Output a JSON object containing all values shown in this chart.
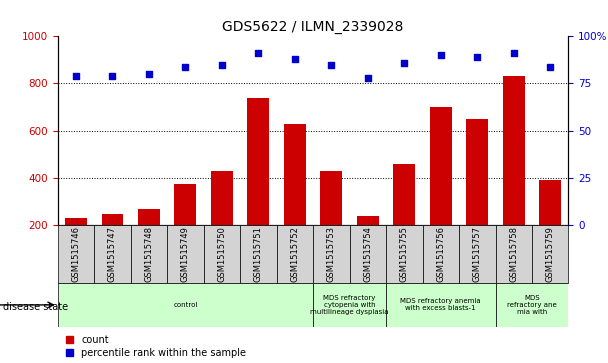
{
  "title": "GDS5622 / ILMN_2339028",
  "samples": [
    "GSM1515746",
    "GSM1515747",
    "GSM1515748",
    "GSM1515749",
    "GSM1515750",
    "GSM1515751",
    "GSM1515752",
    "GSM1515753",
    "GSM1515754",
    "GSM1515755",
    "GSM1515756",
    "GSM1515757",
    "GSM1515758",
    "GSM1515759"
  ],
  "counts": [
    230,
    245,
    270,
    375,
    430,
    740,
    630,
    430,
    240,
    460,
    700,
    650,
    830,
    390
  ],
  "percentile_ranks": [
    79,
    79,
    80,
    84,
    85,
    91,
    88,
    85,
    78,
    86,
    90,
    89,
    91,
    84
  ],
  "bar_color": "#cc0000",
  "dot_color": "#0000cc",
  "ylim_left": [
    200,
    1000
  ],
  "ylim_right": [
    0,
    100
  ],
  "yticks_left": [
    200,
    400,
    600,
    800,
    1000
  ],
  "yticks_right": [
    0,
    25,
    50,
    75,
    100
  ],
  "grid_values": [
    400,
    600,
    800
  ],
  "background_color": "#ffffff",
  "tick_color_left": "#cc0000",
  "tick_color_right": "#0000cc",
  "sample_box_color": "#d3d3d3",
  "disease_box_color": "#ccffcc",
  "disease_state_label": "disease state",
  "legend_count": "count",
  "legend_percentile": "percentile rank within the sample",
  "disease_groups": [
    {
      "label": "control",
      "start": 0,
      "end": 7
    },
    {
      "label": "MDS refractory\ncytopenia with\nmultilineage dysplasia",
      "start": 7,
      "end": 9
    },
    {
      "label": "MDS refractory anemia\nwith excess blasts-1",
      "start": 9,
      "end": 12
    },
    {
      "label": "MDS\nrefractory ane\nmia with",
      "start": 12,
      "end": 14
    }
  ]
}
